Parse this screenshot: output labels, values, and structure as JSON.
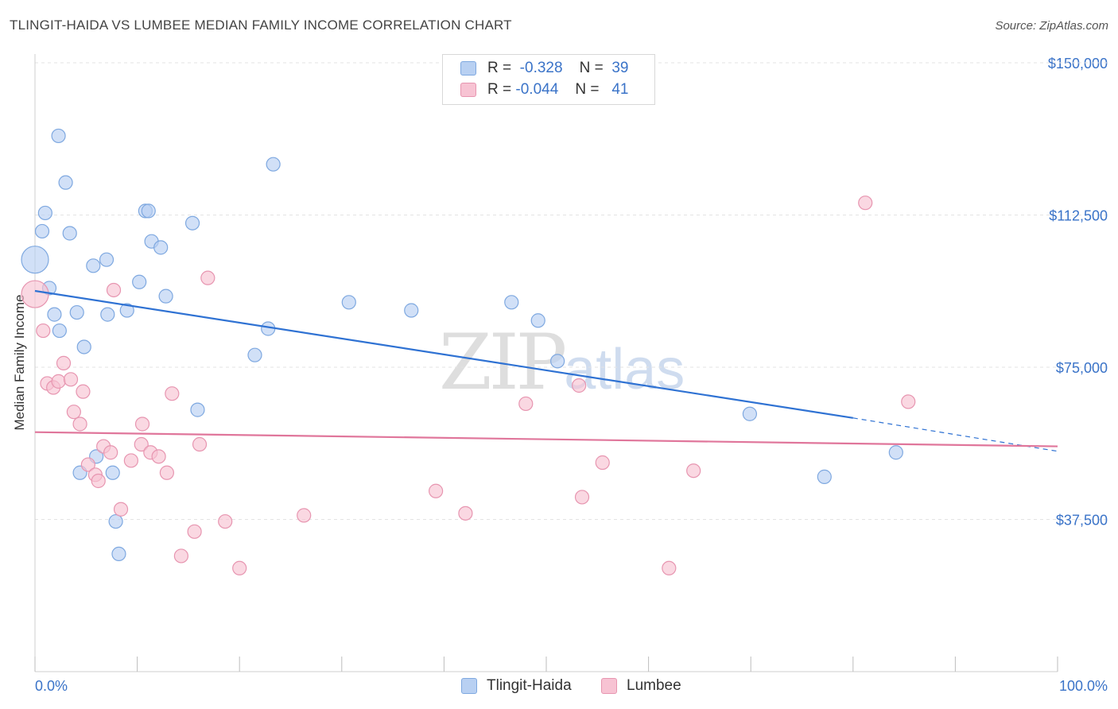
{
  "header": {
    "title": "TLINGIT-HAIDA VS LUMBEE MEDIAN FAMILY INCOME CORRELATION CHART",
    "source": "Source: ZipAtlas.com"
  },
  "watermark": {
    "zip": "ZIP",
    "atlas": "atlas"
  },
  "legend": {
    "rows": [
      {
        "r_label": "R =",
        "r_value": "-0.328",
        "n_label": "N =",
        "n_value": "39"
      },
      {
        "r_label": "R =",
        "r_value": "-0.044",
        "n_label": "N =",
        "n_value": "41"
      }
    ]
  },
  "colors": {
    "blue_fill": "#b8d0f2",
    "blue_stroke": "#7ea8e0",
    "blue_line": "#2f72d3",
    "pink_fill": "#f7c3d3",
    "pink_stroke": "#e795b0",
    "pink_line": "#e0769b",
    "axis_text": "#3a73c8",
    "grid": "#e3e3e3"
  },
  "chart_data": {
    "type": "scatter",
    "title": "TLINGIT-HAIDA VS LUMBEE MEDIAN FAMILY INCOME CORRELATION CHART",
    "xlabel": "",
    "ylabel": "Median Family Income",
    "xlim": [
      0,
      100
    ],
    "ylim": [
      0,
      157000
    ],
    "x_tick_labels": [
      "0.0%",
      "100.0%"
    ],
    "y_ticks": [
      {
        "value": 37500,
        "label": "$37,500"
      },
      {
        "value": 75000,
        "label": "$75,000"
      },
      {
        "value": 112500,
        "label": "$112,500"
      },
      {
        "value": 150000,
        "label": "$150,000"
      }
    ],
    "series": [
      {
        "name": "Tlingit-Haida",
        "color": "blue",
        "r": -0.328,
        "n": 39,
        "trend": {
          "x0": 0,
          "y0": 93800,
          "x1": 80,
          "y1": 62500,
          "dash_to_x": 100,
          "dash_to_y": 54300
        },
        "points": [
          [
            0,
            101500,
            "large"
          ],
          [
            2.3,
            132000
          ],
          [
            3.0,
            120500
          ],
          [
            1.0,
            113000
          ],
          [
            0.7,
            108500
          ],
          [
            3.4,
            108000
          ],
          [
            10.8,
            113500
          ],
          [
            11.1,
            113500
          ],
          [
            15.4,
            110500
          ],
          [
            11.4,
            106000
          ],
          [
            12.3,
            104500
          ],
          [
            5.7,
            100000
          ],
          [
            7.0,
            101500
          ],
          [
            1.4,
            94500
          ],
          [
            10.2,
            96000
          ],
          [
            12.8,
            92500
          ],
          [
            1.9,
            88000
          ],
          [
            4.1,
            88500
          ],
          [
            7.1,
            88000
          ],
          [
            9.0,
            89000
          ],
          [
            2.4,
            84000
          ],
          [
            4.8,
            80000
          ],
          [
            23.3,
            125000
          ],
          [
            22.8,
            84500
          ],
          [
            21.5,
            78000
          ],
          [
            30.7,
            91000
          ],
          [
            36.8,
            89000
          ],
          [
            46.6,
            91000
          ],
          [
            49.2,
            86500
          ],
          [
            51.1,
            76500
          ],
          [
            15.9,
            64500
          ],
          [
            69.9,
            63500
          ],
          [
            6.0,
            53000
          ],
          [
            7.6,
            49000
          ],
          [
            4.4,
            49000
          ],
          [
            7.9,
            37000
          ],
          [
            8.2,
            29000
          ],
          [
            84.2,
            54000
          ],
          [
            77.2,
            48000
          ]
        ]
      },
      {
        "name": "Lumbee",
        "color": "pink",
        "r": -0.044,
        "n": 41,
        "trend": {
          "x0": 0,
          "y0": 59000,
          "x1": 100,
          "y1": 55500
        },
        "points": [
          [
            0,
            93000,
            "large"
          ],
          [
            0.8,
            84000
          ],
          [
            1.2,
            71000
          ],
          [
            1.8,
            70000
          ],
          [
            2.3,
            71500
          ],
          [
            2.8,
            76000
          ],
          [
            3.5,
            72000
          ],
          [
            3.8,
            64000
          ],
          [
            4.4,
            61000
          ],
          [
            4.7,
            69000
          ],
          [
            5.2,
            51000
          ],
          [
            5.9,
            48500
          ],
          [
            6.2,
            47000
          ],
          [
            6.7,
            55500
          ],
          [
            7.4,
            54000
          ],
          [
            8.4,
            40000
          ],
          [
            9.4,
            52000
          ],
          [
            10.5,
            61000
          ],
          [
            10.4,
            56000
          ],
          [
            11.3,
            54000
          ],
          [
            12.1,
            53000
          ],
          [
            12.9,
            49000
          ],
          [
            13.4,
            68500
          ],
          [
            14.3,
            28500
          ],
          [
            15.6,
            34500
          ],
          [
            16.1,
            56000
          ],
          [
            16.9,
            97000
          ],
          [
            18.6,
            37000
          ],
          [
            20.0,
            25500
          ],
          [
            26.3,
            38500
          ],
          [
            39.2,
            44500
          ],
          [
            42.1,
            39000
          ],
          [
            48.0,
            66000
          ],
          [
            53.2,
            70500
          ],
          [
            53.5,
            43000
          ],
          [
            55.5,
            51500
          ],
          [
            62.0,
            25500
          ],
          [
            64.4,
            49500
          ],
          [
            81.2,
            115500
          ],
          [
            85.4,
            66500
          ],
          [
            7.7,
            94000
          ]
        ]
      }
    ]
  },
  "bottom_legend": {
    "items": [
      "Tlingit-Haida",
      "Lumbee"
    ]
  }
}
